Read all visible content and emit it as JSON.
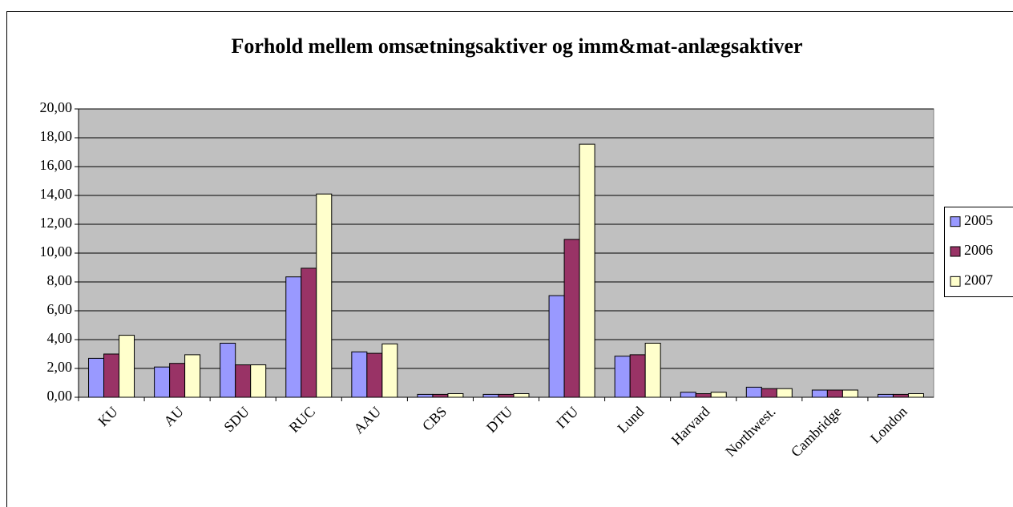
{
  "chart_data": {
    "type": "bar",
    "title": "Forhold mellem omsætningsaktiver og imm&mat-anlægsaktiver",
    "categories": [
      "KU",
      "AU",
      "SDU",
      "RUC",
      "AAU",
      "CBS",
      "DTU",
      "ITU",
      "Lund",
      "Harvard",
      "Northwest.",
      "Cambridge",
      "London"
    ],
    "series": [
      {
        "name": "2005",
        "color": "#9999ff",
        "values": [
          2.7,
          2.1,
          3.75,
          8.35,
          3.15,
          0.2,
          0.2,
          7.05,
          2.85,
          0.35,
          0.7,
          0.5,
          0.2
        ]
      },
      {
        "name": "2006",
        "color": "#993366",
        "values": [
          3.0,
          2.35,
          2.25,
          8.95,
          3.05,
          0.2,
          0.2,
          10.95,
          2.95,
          0.25,
          0.6,
          0.5,
          0.2
        ]
      },
      {
        "name": "2007",
        "color": "#ffffcc",
        "values": [
          4.3,
          2.95,
          2.25,
          14.1,
          3.7,
          0.25,
          0.25,
          17.55,
          3.75,
          0.35,
          0.6,
          0.5,
          0.25
        ]
      }
    ],
    "ylim": [
      0,
      20
    ],
    "yticks": [
      {
        "value": 0,
        "label": "0,00"
      },
      {
        "value": 2,
        "label": "2,00"
      },
      {
        "value": 4,
        "label": "4,00"
      },
      {
        "value": 6,
        "label": "6,00"
      },
      {
        "value": 8,
        "label": "8,00"
      },
      {
        "value": 10,
        "label": "10,00"
      },
      {
        "value": 12,
        "label": "12,00"
      },
      {
        "value": 14,
        "label": "14,00"
      },
      {
        "value": 16,
        "label": "16,00"
      },
      {
        "value": 18,
        "label": "18,00"
      },
      {
        "value": 20,
        "label": "20,00"
      }
    ],
    "grid": true,
    "legend": "right"
  }
}
